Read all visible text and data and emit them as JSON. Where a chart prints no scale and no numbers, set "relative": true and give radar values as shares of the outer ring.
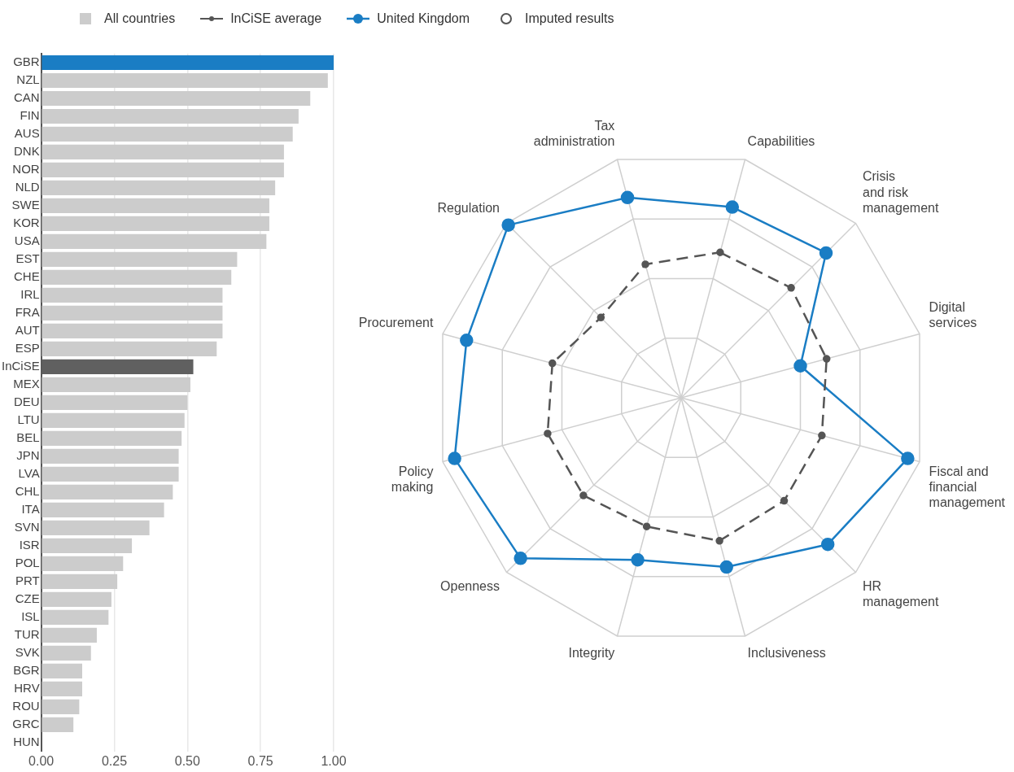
{
  "chart_data": [
    {
      "type": "bar",
      "orientation": "horizontal",
      "categories": [
        "GBR",
        "NZL",
        "CAN",
        "FIN",
        "AUS",
        "DNK",
        "NOR",
        "NLD",
        "SWE",
        "KOR",
        "USA",
        "EST",
        "CHE",
        "IRL",
        "FRA",
        "AUT",
        "ESP",
        "InCiSE",
        "MEX",
        "DEU",
        "LTU",
        "BEL",
        "JPN",
        "LVA",
        "CHL",
        "ITA",
        "SVN",
        "ISR",
        "POL",
        "PRT",
        "CZE",
        "ISL",
        "TUR",
        "SVK",
        "BGR",
        "HRV",
        "ROU",
        "GRC",
        "HUN"
      ],
      "series": [
        {
          "name": "All countries",
          "color": "#cccccc",
          "colors": [
            "#1a7dc4",
            "#cccccc",
            "#cccccc",
            "#cccccc",
            "#cccccc",
            "#cccccc",
            "#cccccc",
            "#cccccc",
            "#cccccc",
            "#cccccc",
            "#cccccc",
            "#cccccc",
            "#cccccc",
            "#cccccc",
            "#cccccc",
            "#cccccc",
            "#cccccc",
            "#606060",
            "#cccccc",
            "#cccccc",
            "#cccccc",
            "#cccccc",
            "#cccccc",
            "#cccccc",
            "#cccccc",
            "#cccccc",
            "#cccccc",
            "#cccccc",
            "#cccccc",
            "#cccccc",
            "#cccccc",
            "#cccccc",
            "#cccccc",
            "#cccccc",
            "#cccccc",
            "#cccccc",
            "#cccccc",
            "#cccccc",
            "#cccccc"
          ],
          "values": [
            1.0,
            0.98,
            0.92,
            0.88,
            0.86,
            0.83,
            0.83,
            0.8,
            0.78,
            0.78,
            0.77,
            0.67,
            0.65,
            0.62,
            0.62,
            0.62,
            0.6,
            0.52,
            0.51,
            0.5,
            0.49,
            0.48,
            0.47,
            0.47,
            0.45,
            0.42,
            0.37,
            0.31,
            0.28,
            0.26,
            0.24,
            0.23,
            0.19,
            0.17,
            0.14,
            0.14,
            0.13,
            0.11,
            0
          ]
        }
      ],
      "xlim": [
        0,
        1
      ],
      "xticks": [
        {
          "value": 0,
          "label": "0.00"
        },
        {
          "value": 0.25,
          "label": "0.25"
        },
        {
          "value": 0.5,
          "label": "0.50"
        },
        {
          "value": 0.75,
          "label": "0.75"
        },
        {
          "value": 1,
          "label": "1.00"
        }
      ],
      "grid": "x",
      "legend": "top"
    },
    {
      "type": "radar",
      "relative": true,
      "categories": [
        "Capabilities",
        "Crisis\nand risk\nmanagement",
        "Digital\nservices",
        "Fiscal and\nfinancial\nmanagement",
        "HR\nmanagement",
        "Inclusiveness",
        "Integrity",
        "Openness",
        "Policy\nmaking",
        "Procurement",
        "Regulation",
        "Tax\nadministration"
      ],
      "series": [
        {
          "name": "InCiSE average",
          "color": "#555555",
          "line_style": "dashed",
          "marker": "circle",
          "values": [
            0.61,
            0.63,
            0.61,
            0.59,
            0.59,
            0.6,
            0.54,
            0.56,
            0.56,
            0.54,
            0.46,
            0.56
          ]
        },
        {
          "name": "United Kingdom",
          "color": "#1a7dc4",
          "line_style": "solid",
          "marker": "circle",
          "values": [
            0.8,
            0.83,
            0.5,
            0.95,
            0.84,
            0.71,
            0.68,
            0.92,
            0.95,
            0.9,
            0.99,
            0.84
          ]
        },
        {
          "name": "Imputed results",
          "color": "#555555",
          "marker": "circle",
          "line_style": "none",
          "values": [
            null,
            null,
            null,
            null,
            null,
            null,
            null,
            null,
            null,
            null,
            null,
            null
          ]
        }
      ],
      "grid": true,
      "legend": "top"
    }
  ]
}
